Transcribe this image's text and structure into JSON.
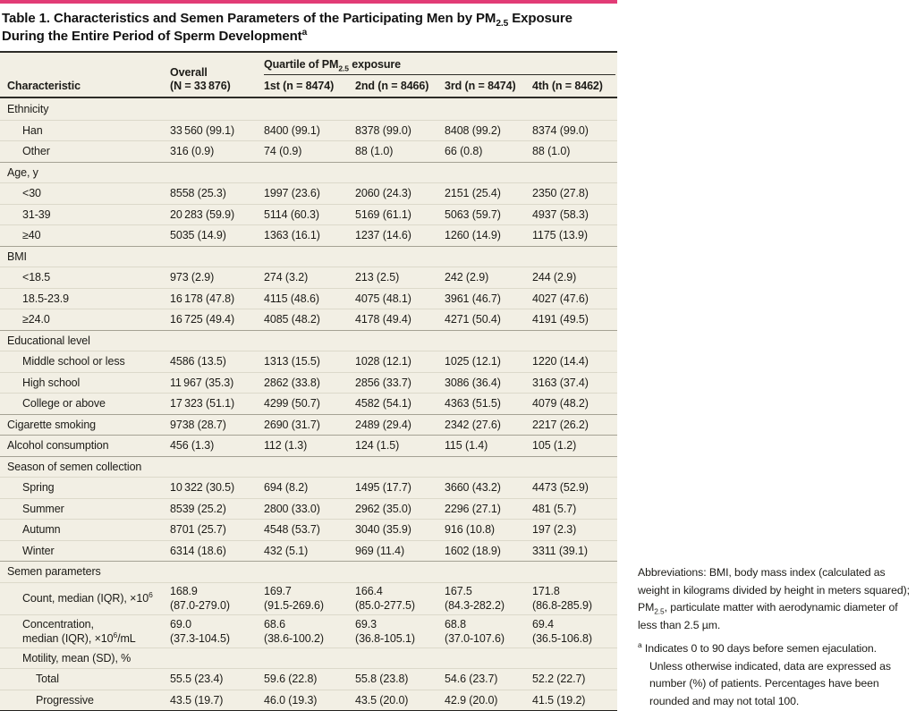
{
  "accent_color": "#e23b76",
  "title": {
    "parts": [
      {
        "t": "Table 1. Characteristics and Semen Parameters of the Participating Men by PM"
      },
      {
        "sub": "2.5"
      },
      {
        "t": " Exposure During the Entire Period of Sperm Development"
      },
      {
        "sup": "a"
      }
    ]
  },
  "table": {
    "header": {
      "characteristic": "Characteristic",
      "overall": "Overall\n(N = 33 876)",
      "quartile_group_parts": [
        {
          "t": "Quartile of PM"
        },
        {
          "sub": "2.5"
        },
        {
          "t": " exposure"
        }
      ],
      "quartiles": [
        "1st (n = 8474)",
        "2nd (n = 8466)",
        "3rd (n = 8474)",
        "4th (n = 8462)"
      ]
    },
    "rows": [
      {
        "type": "group",
        "indent": 0,
        "sep": "none",
        "label_parts": [
          {
            "t": "Ethnicity"
          }
        ]
      },
      {
        "type": "data",
        "indent": 1,
        "sep": "light",
        "label_parts": [
          {
            "t": "Han"
          }
        ],
        "values": [
          "33 560 (99.1)",
          "8400 (99.1)",
          "8378 (99.0)",
          "8408 (99.2)",
          "8374 (99.0)"
        ]
      },
      {
        "type": "data",
        "indent": 1,
        "sep": "light",
        "label_parts": [
          {
            "t": "Other"
          }
        ],
        "values": [
          "316 (0.9)",
          "74 (0.9)",
          "88 (1.0)",
          "66 (0.8)",
          "88 (1.0)"
        ]
      },
      {
        "type": "group",
        "indent": 0,
        "sep": "medium",
        "label_parts": [
          {
            "t": "Age, y"
          }
        ]
      },
      {
        "type": "data",
        "indent": 1,
        "sep": "light",
        "label_parts": [
          {
            "t": "<30"
          }
        ],
        "values": [
          "8558 (25.3)",
          "1997 (23.6)",
          "2060 (24.3)",
          "2151 (25.4)",
          "2350 (27.8)"
        ]
      },
      {
        "type": "data",
        "indent": 1,
        "sep": "light",
        "label_parts": [
          {
            "t": "31-39"
          }
        ],
        "values": [
          "20 283 (59.9)",
          "5114 (60.3)",
          "5169 (61.1)",
          "5063 (59.7)",
          "4937 (58.3)"
        ]
      },
      {
        "type": "data",
        "indent": 1,
        "sep": "light",
        "label_parts": [
          {
            "t": "≥40"
          }
        ],
        "values": [
          "5035 (14.9)",
          "1363 (16.1)",
          "1237 (14.6)",
          "1260 (14.9)",
          "1175 (13.9)"
        ]
      },
      {
        "type": "group",
        "indent": 0,
        "sep": "medium",
        "label_parts": [
          {
            "t": "BMI"
          }
        ]
      },
      {
        "type": "data",
        "indent": 1,
        "sep": "light",
        "label_parts": [
          {
            "t": "<18.5"
          }
        ],
        "values": [
          "973 (2.9)",
          "274 (3.2)",
          "213 (2.5)",
          "242 (2.9)",
          "244 (2.9)"
        ]
      },
      {
        "type": "data",
        "indent": 1,
        "sep": "light",
        "label_parts": [
          {
            "t": "18.5-23.9"
          }
        ],
        "values": [
          "16 178 (47.8)",
          "4115 (48.6)",
          "4075 (48.1)",
          "3961 (46.7)",
          "4027 (47.6)"
        ]
      },
      {
        "type": "data",
        "indent": 1,
        "sep": "light",
        "label_parts": [
          {
            "t": "≥24.0"
          }
        ],
        "values": [
          "16 725 (49.4)",
          "4085 (48.2)",
          "4178 (49.4)",
          "4271 (50.4)",
          "4191 (49.5)"
        ]
      },
      {
        "type": "group",
        "indent": 0,
        "sep": "medium",
        "label_parts": [
          {
            "t": "Educational level"
          }
        ]
      },
      {
        "type": "data",
        "indent": 1,
        "sep": "light",
        "label_parts": [
          {
            "t": "Middle school or less"
          }
        ],
        "values": [
          "4586 (13.5)",
          "1313 (15.5)",
          "1028 (12.1)",
          "1025 (12.1)",
          "1220 (14.4)"
        ]
      },
      {
        "type": "data",
        "indent": 1,
        "sep": "light",
        "label_parts": [
          {
            "t": "High school"
          }
        ],
        "values": [
          "11 967 (35.3)",
          "2862 (33.8)",
          "2856 (33.7)",
          "3086 (36.4)",
          "3163 (37.4)"
        ]
      },
      {
        "type": "data",
        "indent": 1,
        "sep": "light",
        "label_parts": [
          {
            "t": "College or above"
          }
        ],
        "values": [
          "17 323 (51.1)",
          "4299 (50.7)",
          "4582 (54.1)",
          "4363 (51.5)",
          "4079 (48.2)"
        ]
      },
      {
        "type": "data",
        "indent": 0,
        "sep": "medium",
        "label_parts": [
          {
            "t": "Cigarette smoking"
          }
        ],
        "values": [
          "9738 (28.7)",
          "2690 (31.7)",
          "2489 (29.4)",
          "2342 (27.6)",
          "2217 (26.2)"
        ]
      },
      {
        "type": "data",
        "indent": 0,
        "sep": "medium",
        "label_parts": [
          {
            "t": "Alcohol consumption"
          }
        ],
        "values": [
          "456 (1.3)",
          "112 (1.3)",
          "124 (1.5)",
          "115 (1.4)",
          "105 (1.2)"
        ]
      },
      {
        "type": "group",
        "indent": 0,
        "sep": "medium",
        "label_parts": [
          {
            "t": "Season of semen collection"
          }
        ]
      },
      {
        "type": "data",
        "indent": 1,
        "sep": "light",
        "label_parts": [
          {
            "t": "Spring"
          }
        ],
        "values": [
          "10 322 (30.5)",
          "694 (8.2)",
          "1495 (17.7)",
          "3660 (43.2)",
          "4473 (52.9)"
        ]
      },
      {
        "type": "data",
        "indent": 1,
        "sep": "light",
        "label_parts": [
          {
            "t": "Summer"
          }
        ],
        "values": [
          "8539 (25.2)",
          "2800 (33.0)",
          "2962 (35.0)",
          "2296 (27.1)",
          "481 (5.7)"
        ]
      },
      {
        "type": "data",
        "indent": 1,
        "sep": "light",
        "label_parts": [
          {
            "t": "Autumn"
          }
        ],
        "values": [
          "8701 (25.7)",
          "4548 (53.7)",
          "3040 (35.9)",
          "916 (10.8)",
          "197 (2.3)"
        ]
      },
      {
        "type": "data",
        "indent": 1,
        "sep": "light",
        "label_parts": [
          {
            "t": "Winter"
          }
        ],
        "values": [
          "6314 (18.6)",
          "432 (5.1)",
          "969 (11.4)",
          "1602 (18.9)",
          "3311 (39.1)"
        ]
      },
      {
        "type": "group",
        "indent": 0,
        "sep": "medium",
        "label_parts": [
          {
            "t": "Semen parameters"
          }
        ]
      },
      {
        "type": "data",
        "indent": 1,
        "sep": "light",
        "tall": true,
        "label_parts": [
          {
            "t": "Count, median (IQR), ×10"
          },
          {
            "sup": "6"
          }
        ],
        "values": [
          "168.9\n(87.0-279.0)",
          "169.7\n(91.5-269.6)",
          "166.4\n(85.0-277.5)",
          "167.5\n(84.3-282.2)",
          "171.8\n(86.8-285.9)"
        ]
      },
      {
        "type": "data",
        "indent": 1,
        "sep": "light",
        "tall": true,
        "label_parts": [
          {
            "t": "Concentration,\nmedian (IQR), ×10"
          },
          {
            "sup": "6"
          },
          {
            "t": "/mL"
          }
        ],
        "values": [
          "69.0\n(37.3-104.5)",
          "68.6\n(38.6-100.2)",
          "69.3\n(36.8-105.1)",
          "68.8\n(37.0-107.6)",
          "69.4\n(36.5-106.8)"
        ]
      },
      {
        "type": "group",
        "indent": 1,
        "sep": "light",
        "label_parts": [
          {
            "t": "Motility, mean (SD), %"
          }
        ]
      },
      {
        "type": "data",
        "indent": 2,
        "sep": "light",
        "label_parts": [
          {
            "t": "Total"
          }
        ],
        "values": [
          "55.5 (23.4)",
          "59.6 (22.8)",
          "55.8 (23.8)",
          "54.6 (23.7)",
          "52.2 (22.7)"
        ]
      },
      {
        "type": "data",
        "indent": 2,
        "sep": "light",
        "label_parts": [
          {
            "t": "Progressive"
          }
        ],
        "values": [
          "43.5 (19.7)",
          "46.0 (19.3)",
          "43.5 (20.0)",
          "42.9 (20.0)",
          "41.5 (19.2)"
        ]
      }
    ]
  },
  "footnotes": {
    "abbreviations_parts": [
      {
        "t": "Abbreviations: BMI, body mass index (calculated as weight in kilograms divided by height in meters squared); PM"
      },
      {
        "sub": "2.5"
      },
      {
        "t": ", particulate matter with aerodynamic diameter of less than 2.5 µm."
      }
    ],
    "a_marker": "a",
    "a_text": "Indicates 0 to 90 days before semen ejaculation. Unless otherwise indicated, data are expressed as number (%) of patients. Percentages have been rounded and may not total 100."
  }
}
